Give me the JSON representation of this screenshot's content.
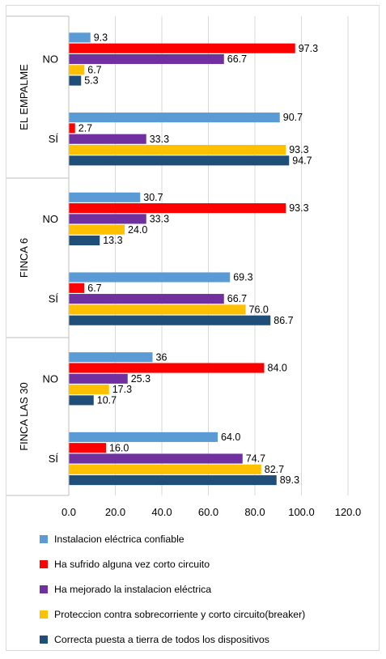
{
  "chart_data": {
    "type": "bar",
    "orientation": "horizontal",
    "xlim": [
      0,
      120
    ],
    "x_ticks": [
      "0.0",
      "20.0",
      "40.0",
      "60.0",
      "80.0",
      "100.0",
      "120.0"
    ],
    "grid": true,
    "legend_position": "bottom",
    "groups": [
      {
        "name": "EL EMPALME",
        "categories": [
          {
            "name": "NO",
            "values": [
              9.3,
              97.3,
              66.7,
              6.7,
              5.3
            ],
            "labels": [
              "9.3",
              "97.3",
              "66.7",
              "6.7",
              "5.3"
            ]
          },
          {
            "name": "SÍ",
            "values": [
              90.7,
              2.7,
              33.3,
              93.3,
              94.7
            ],
            "labels": [
              "90.7",
              "2.7",
              "33.3",
              "93.3",
              "94.7"
            ]
          }
        ]
      },
      {
        "name": "FINCA 6",
        "categories": [
          {
            "name": "NO",
            "values": [
              30.7,
              93.3,
              33.3,
              24.0,
              13.3
            ],
            "labels": [
              "30.7",
              "93.3",
              "33.3",
              "24.0",
              "13.3"
            ]
          },
          {
            "name": "SÍ",
            "values": [
              69.3,
              6.7,
              66.7,
              76.0,
              86.7
            ],
            "labels": [
              "69.3",
              "6.7",
              "66.7",
              "76.0",
              "86.7"
            ]
          }
        ]
      },
      {
        "name": "FINCA LAS 30",
        "categories": [
          {
            "name": "NO",
            "values": [
              36,
              84.0,
              25.3,
              17.3,
              10.7
            ],
            "labels": [
              "36",
              "84.0",
              "25.3",
              "17.3",
              "10.7"
            ]
          },
          {
            "name": "SÍ",
            "values": [
              64.0,
              16.0,
              74.7,
              82.7,
              89.3
            ],
            "labels": [
              "64.0",
              "16.0",
              "74.7",
              "82.7",
              "89.3"
            ]
          }
        ]
      }
    ],
    "series": [
      {
        "name": "Instalacion eléctrica  confiable",
        "color": "#5b9bd5"
      },
      {
        "name": "Ha sufrido alguna vez corto circuito",
        "color": "#ff0000"
      },
      {
        "name": "Ha mejorado la instalacion eléctrica",
        "color": "#7030a0"
      },
      {
        "name": "Proteccion contra sobrecorriente y corto circuito(breaker)",
        "color": "#ffc000"
      },
      {
        "name": "Correcta puesta a tierra de todos los dispositivos",
        "color": "#1f4e79"
      }
    ]
  }
}
